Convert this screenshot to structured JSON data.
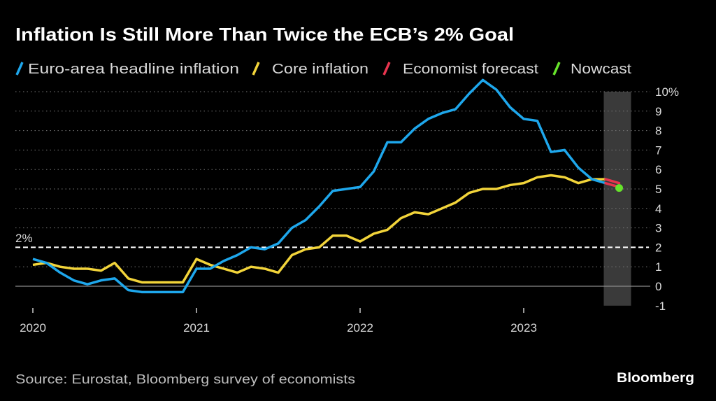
{
  "chart_data": {
    "type": "line",
    "title": "Inflation Is Still More Than Twice the ECB’s 2% Goal",
    "source": "Source: Eurostat, Bloomberg survey of economists",
    "brand": "Bloomberg",
    "x_start": "2020-01",
    "x_ticks": [
      "2020",
      "2021",
      "2022",
      "2023"
    ],
    "y_ticks": [
      "10%",
      "9",
      "8",
      "7",
      "6",
      "5",
      "4",
      "3",
      "2",
      "1",
      "0",
      "-1"
    ],
    "y_tick_values": [
      10,
      9,
      8,
      7,
      6,
      5,
      4,
      3,
      2,
      1,
      0,
      -1
    ],
    "ylim": [
      -1,
      10
    ],
    "grid": true,
    "legend_position": "top-left",
    "reference_line": {
      "value": 2,
      "label": "2%"
    },
    "forecast_band_month_index": 43,
    "series": [
      {
        "name": "Euro-area headline inflation",
        "color": "#1ea7ec",
        "values": [
          1.4,
          1.2,
          0.7,
          0.3,
          0.1,
          0.3,
          0.4,
          -0.2,
          -0.3,
          -0.3,
          -0.3,
          -0.3,
          0.9,
          0.9,
          1.3,
          1.6,
          2.0,
          1.9,
          2.2,
          3.0,
          3.4,
          4.1,
          4.9,
          5.0,
          5.1,
          5.9,
          7.4,
          7.4,
          8.1,
          8.6,
          8.9,
          9.1,
          9.9,
          10.6,
          10.1,
          9.2,
          8.6,
          8.5,
          6.9,
          7.0,
          6.1,
          5.5,
          5.3
        ]
      },
      {
        "name": "Core inflation",
        "color": "#f2d43a",
        "values": [
          1.1,
          1.2,
          1.0,
          0.9,
          0.9,
          0.8,
          1.2,
          0.4,
          0.2,
          0.2,
          0.2,
          0.2,
          1.4,
          1.1,
          0.9,
          0.7,
          1.0,
          0.9,
          0.7,
          1.6,
          1.9,
          2.0,
          2.6,
          2.6,
          2.3,
          2.7,
          2.9,
          3.5,
          3.8,
          3.7,
          4.0,
          4.3,
          4.8,
          5.0,
          5.0,
          5.2,
          5.3,
          5.6,
          5.7,
          5.6,
          5.3,
          5.5,
          5.5
        ]
      },
      {
        "name": "Economist forecast",
        "color": "#e8344e",
        "segments": [
          [
            [
              42,
              5.5
            ],
            [
              43,
              5.3
            ]
          ],
          [
            [
              42,
              5.3
            ],
            [
              43,
              5.1
            ]
          ]
        ]
      },
      {
        "name": "Nowcast",
        "color": "#67e32b",
        "points": [
          [
            43,
            5.05
          ]
        ]
      }
    ]
  }
}
